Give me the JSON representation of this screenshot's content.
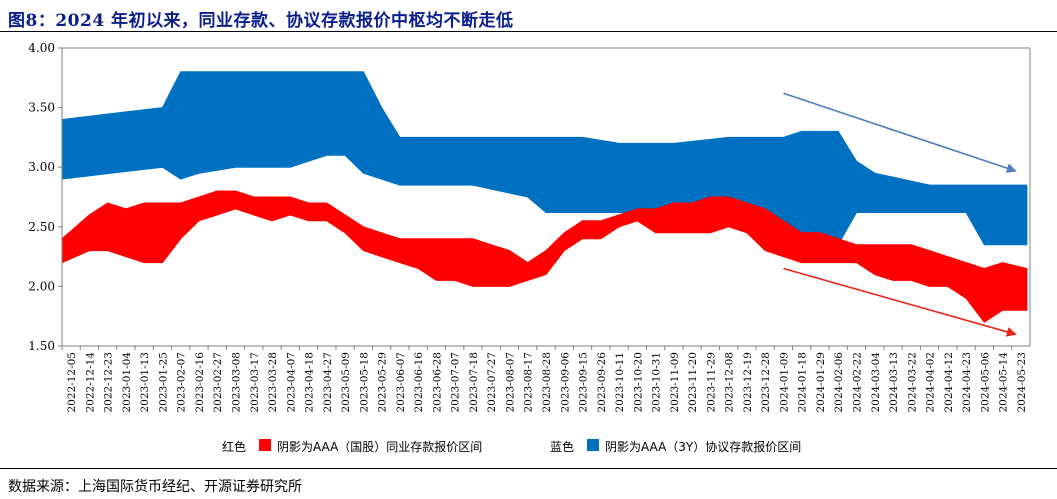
{
  "title": "图8：2024 年初以来，同业存款、协议存款报价中枢均不断走低",
  "source": "数据来源：上海国际货币经纪、开源证券研究所",
  "legend": {
    "red_prefix": "红色",
    "red_label": "阴影为AAA（国股）同业存款报价区间",
    "blue_prefix": "蓝色",
    "blue_label": "阴影为AAA（3Y）协议存款报价区间"
  },
  "colors": {
    "red": "#ff0000",
    "blue": "#0070c0",
    "red_arrow": "#e8261c",
    "blue_arrow": "#4a7ebf"
  },
  "chart_data": {
    "type": "area",
    "ylim": [
      1.5,
      4.0
    ],
    "yticks": [
      "1.50",
      "2.00",
      "2.50",
      "3.00",
      "3.50",
      "4.00"
    ],
    "x_ticks": [
      "2022-12-05",
      "2022-12-14",
      "2022-12-23",
      "2023-01-04",
      "2023-01-13",
      "2023-01-25",
      "2023-02-07",
      "2023-02-16",
      "2023-02-27",
      "2023-03-08",
      "2023-03-17",
      "2023-03-28",
      "2023-04-07",
      "2023-04-18",
      "2023-04-27",
      "2023-05-09",
      "2023-05-18",
      "2023-05-29",
      "2023-06-07",
      "2023-06-16",
      "2023-06-28",
      "2023-07-07",
      "2023-07-18",
      "2023-07-27",
      "2023-08-07",
      "2023-08-17",
      "2023-08-28",
      "2023-09-06",
      "2023-09-15",
      "2023-09-26",
      "2023-10-11",
      "2023-10-20",
      "2023-10-31",
      "2023-11-09",
      "2023-11-20",
      "2023-11-29",
      "2023-12-08",
      "2023-12-19",
      "2023-12-28",
      "2024-01-09",
      "2024-01-18",
      "2024-01-29",
      "2024-02-06",
      "2024-02-22",
      "2024-03-04",
      "2024-03-13",
      "2024-03-22",
      "2024-04-02",
      "2024-04-12",
      "2024-04-23",
      "2024-05-06",
      "2024-05-14",
      "2024-05-23"
    ],
    "series": [
      {
        "name": "阴影为AAA（3Y）协议存款报价区间",
        "color": "#0070c0",
        "x": [
          "2022-12-05",
          "2023-01-25",
          "2023-02-07",
          "2023-02-16",
          "2023-03-08",
          "2023-03-17",
          "2023-04-07",
          "2023-04-18",
          "2023-04-27",
          "2023-05-09",
          "2023-05-18",
          "2023-05-29",
          "2023-06-07",
          "2023-06-16",
          "2023-06-28",
          "2023-07-18",
          "2023-08-17",
          "2023-08-28",
          "2023-09-15",
          "2023-10-11",
          "2023-11-09",
          "2023-12-08",
          "2024-01-09",
          "2024-01-18",
          "2024-02-06",
          "2024-02-22",
          "2024-03-04",
          "2024-04-02",
          "2024-04-23",
          "2024-05-06",
          "2024-05-14",
          "2024-05-23"
        ],
        "low": [
          2.9,
          3.0,
          2.9,
          2.95,
          3.0,
          3.0,
          3.0,
          3.05,
          3.1,
          3.1,
          2.95,
          2.9,
          2.85,
          2.85,
          2.85,
          2.85,
          2.75,
          2.62,
          2.62,
          2.62,
          2.62,
          2.62,
          2.45,
          2.35,
          2.35,
          2.62,
          2.62,
          2.62,
          2.62,
          2.35,
          2.35,
          2.35
        ],
        "high": [
          3.4,
          3.5,
          3.8,
          3.8,
          3.8,
          3.8,
          3.8,
          3.8,
          3.8,
          3.8,
          3.8,
          3.5,
          3.25,
          3.25,
          3.25,
          3.25,
          3.25,
          3.25,
          3.25,
          3.2,
          3.2,
          3.25,
          3.25,
          3.3,
          3.3,
          3.05,
          2.95,
          2.85,
          2.85,
          2.85,
          2.85,
          2.85
        ]
      },
      {
        "name": "阴影为AAA（国股）同业存款报价区间",
        "color": "#ff0000",
        "x": [
          "2022-12-05",
          "2022-12-14",
          "2022-12-23",
          "2023-01-04",
          "2023-01-13",
          "2023-01-25",
          "2023-02-07",
          "2023-02-16",
          "2023-02-27",
          "2023-03-08",
          "2023-03-17",
          "2023-03-28",
          "2023-04-07",
          "2023-04-18",
          "2023-04-27",
          "2023-05-09",
          "2023-05-18",
          "2023-05-29",
          "2023-06-07",
          "2023-06-16",
          "2023-06-28",
          "2023-07-07",
          "2023-07-18",
          "2023-07-27",
          "2023-08-07",
          "2023-08-17",
          "2023-08-28",
          "2023-09-06",
          "2023-09-15",
          "2023-09-26",
          "2023-10-11",
          "2023-10-20",
          "2023-10-31",
          "2023-11-09",
          "2023-11-20",
          "2023-11-29",
          "2023-12-08",
          "2023-12-19",
          "2023-12-28",
          "2024-01-09",
          "2024-01-18",
          "2024-01-29",
          "2024-02-06",
          "2024-02-22",
          "2024-03-04",
          "2024-03-13",
          "2024-03-22",
          "2024-04-02",
          "2024-04-12",
          "2024-04-23",
          "2024-05-06",
          "2024-05-14",
          "2024-05-23"
        ],
        "low": [
          2.2,
          2.3,
          2.3,
          2.25,
          2.2,
          2.2,
          2.4,
          2.55,
          2.6,
          2.65,
          2.6,
          2.55,
          2.6,
          2.55,
          2.55,
          2.45,
          2.3,
          2.25,
          2.2,
          2.15,
          2.05,
          2.05,
          2.0,
          2.0,
          2.0,
          2.05,
          2.1,
          2.3,
          2.4,
          2.4,
          2.5,
          2.55,
          2.45,
          2.45,
          2.45,
          2.45,
          2.5,
          2.45,
          2.3,
          2.25,
          2.2,
          2.2,
          2.2,
          2.2,
          2.1,
          2.05,
          2.05,
          2.0,
          2.0,
          1.9,
          1.7,
          1.8,
          1.8
        ],
        "high": [
          2.4,
          2.6,
          2.7,
          2.65,
          2.7,
          2.7,
          2.7,
          2.75,
          2.8,
          2.8,
          2.75,
          2.75,
          2.75,
          2.7,
          2.7,
          2.6,
          2.5,
          2.45,
          2.4,
          2.4,
          2.4,
          2.4,
          2.4,
          2.35,
          2.3,
          2.2,
          2.3,
          2.45,
          2.55,
          2.55,
          2.6,
          2.65,
          2.65,
          2.7,
          2.7,
          2.75,
          2.75,
          2.7,
          2.65,
          2.55,
          2.45,
          2.45,
          2.4,
          2.35,
          2.35,
          2.35,
          2.35,
          2.3,
          2.25,
          2.2,
          2.15,
          2.2,
          2.15
        ]
      }
    ],
    "annotations": [
      {
        "type": "arrow",
        "color": "#4a7ebf",
        "from": [
          "2024-01-09",
          3.62
        ],
        "to": [
          "2024-05-23",
          2.97
        ]
      },
      {
        "type": "arrow",
        "color": "#e8261c",
        "from": [
          "2024-01-09",
          2.15
        ],
        "to": [
          "2024-05-23",
          1.6
        ]
      }
    ]
  }
}
